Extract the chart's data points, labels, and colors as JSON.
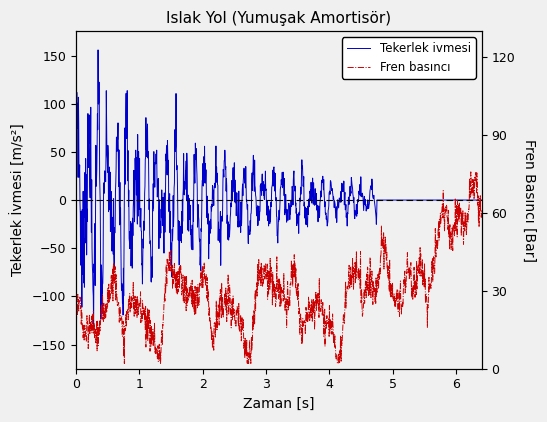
{
  "title": "Islak Yol (Yumuşak Amortisör)",
  "xlabel": "Zaman [s]",
  "ylabel_left": "Tekerlek İvmesi [m/s²]",
  "ylabel_right": "Fren Basıncı [Bar]",
  "legend_blue": "Tekerlek ivmesi",
  "legend_red": "Fren basıncı",
  "xlim": [
    0,
    6.4
  ],
  "ylim_left": [
    -175,
    175
  ],
  "ylim_right": [
    0,
    130
  ],
  "yticks_left": [
    -150,
    -100,
    -50,
    0,
    50,
    100,
    150
  ],
  "yticks_right": [
    0,
    30,
    60,
    90,
    120
  ],
  "xticks": [
    0,
    1,
    2,
    3,
    4,
    5,
    6
  ],
  "blue_color": "#0000cc",
  "red_color": "#cc0000",
  "background_color": "#f0f0f0",
  "figsize": [
    5.47,
    4.22
  ],
  "dpi": 100,
  "title_fontsize": 11,
  "label_fontsize": 10,
  "tick_fontsize": 9
}
